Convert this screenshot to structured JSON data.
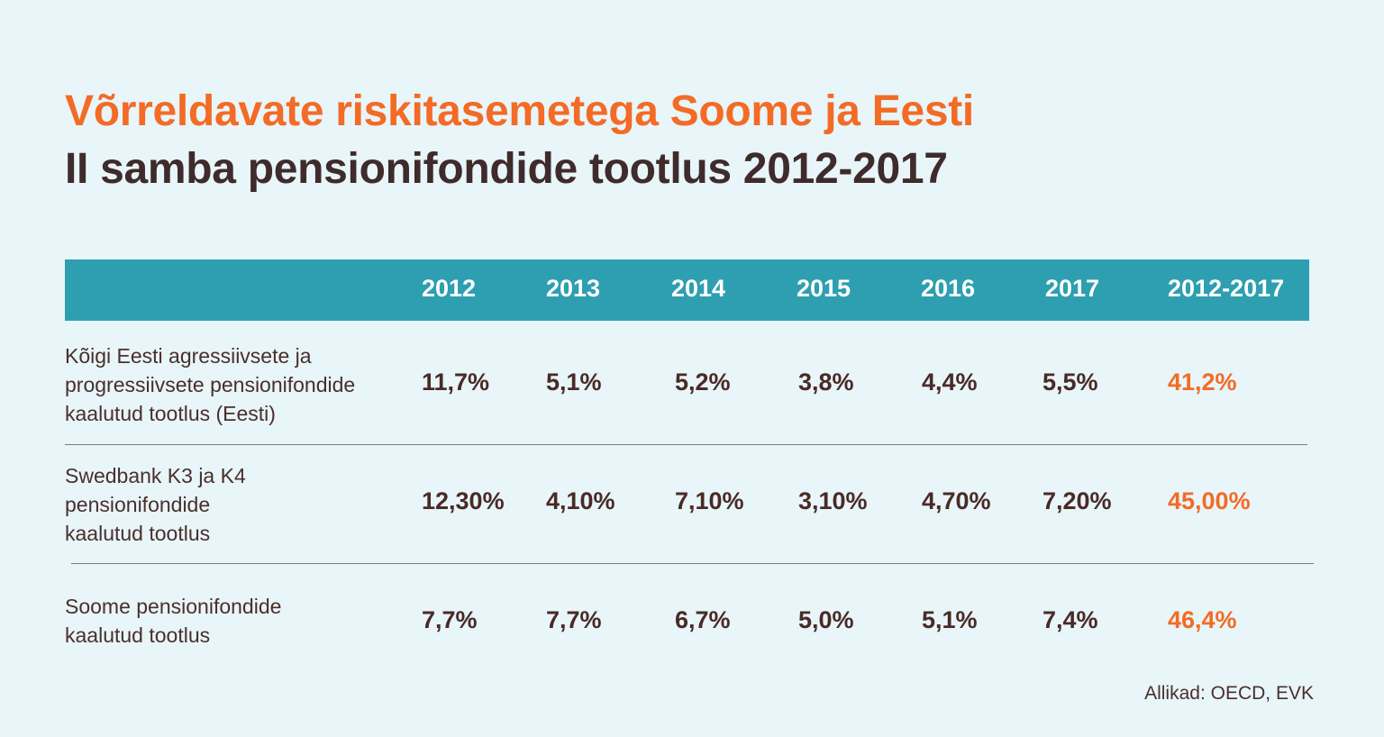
{
  "title": {
    "line1": "Võrreldavate riskitasemetega Soome ja Eesti",
    "line2": "II samba pensionifondide tootlus 2012-2017"
  },
  "chart_data": {
    "type": "table",
    "columns": [
      "2012",
      "2013",
      "2014",
      "2015",
      "2016",
      "2017",
      "2012-2017"
    ],
    "rows": [
      {
        "label_lines": [
          "Kõigi Eesti agressiivsete ja",
          "progressiivsete pensionifondide",
          "kaalutud tootlus (Eesti)"
        ],
        "values": [
          "11,7%",
          "5,1%",
          "5,2%",
          "3,8%",
          "4,4%",
          "5,5%",
          "41,2%"
        ]
      },
      {
        "label_lines": [
          "Swedbank K3 ja K4",
          "pensionifondide",
          "kaalutud tootlus"
        ],
        "values": [
          "12,30%",
          "4,10%",
          "7,10%",
          "3,10%",
          "4,70%",
          "7,20%",
          "45,00%"
        ]
      },
      {
        "label_lines": [
          "Soome pensionifondide",
          "kaalutud tootlus"
        ],
        "values": [
          "7,7%",
          "7,7%",
          "6,7%",
          "5,0%",
          "5,1%",
          "7,4%",
          "46,4%"
        ]
      }
    ]
  },
  "source": "Allikad: OECD, EVK",
  "colors": {
    "accent": "#f36b25",
    "header_bar": "#2e9fb0",
    "text_dark": "#4a2a26",
    "background": "#e8f5f9"
  }
}
